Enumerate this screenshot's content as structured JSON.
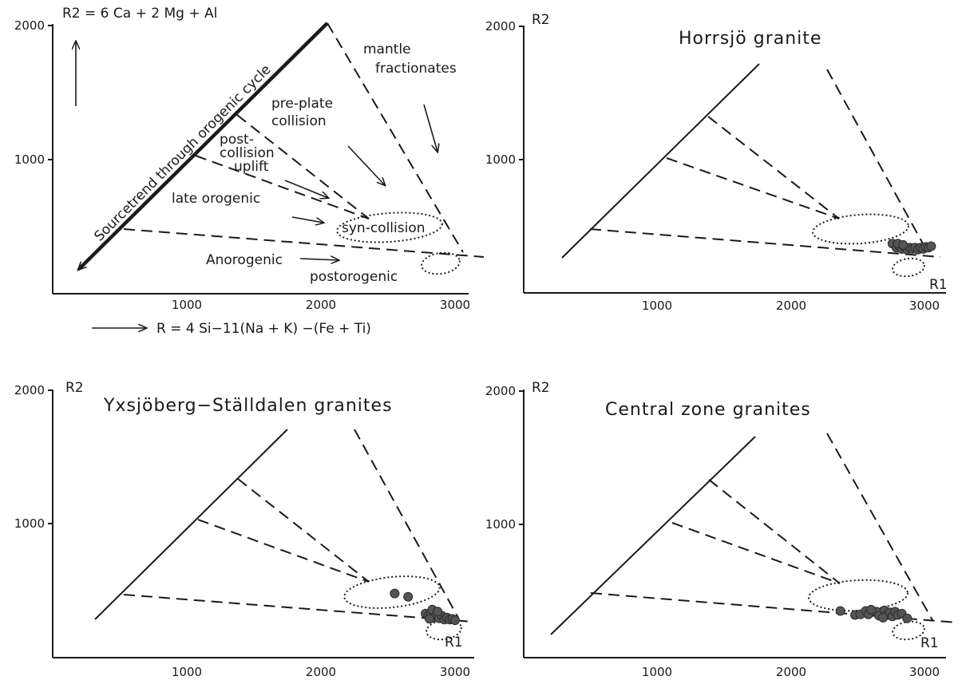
{
  "colors": {
    "ink": "#1a1a1a",
    "points": "#555555",
    "background": "#ffffff"
  },
  "legend_panel": {
    "r2_formula": "R2 = 6 Ca + 2 Mg + Al",
    "r1_formula": "R = 4 Si−11(Na + K) −(Fe + Ti)",
    "sourcetrend_label": "Sourcetrend through orogenic cycle",
    "fields": {
      "mantle_line1": "mantle",
      "mantle_line2": "fractionates",
      "preplate_line1": "pre-plate",
      "preplate_line2": "collision",
      "post_line1": "post-",
      "post_line2": "collision",
      "post_line3": "uplift",
      "late_orogenic": "late orogenic",
      "syn_collision": "syn-collision",
      "anorogenic": "Anorogenic",
      "postorogenic": "postorogenic"
    }
  },
  "axes": {
    "y_label": "R2",
    "x_label": "R1",
    "y_ticks": [
      "1000",
      "2000"
    ],
    "x_ticks": [
      "1000",
      "2000",
      "3000"
    ]
  },
  "panels": [
    {
      "title": ""
    },
    {
      "title": "Horrsjö granite"
    },
    {
      "title": "Yxsjöberg−Ställdalen granites"
    },
    {
      "title": "Central zone granites"
    }
  ],
  "chart_data": [
    {
      "type": "scatter",
      "title": "",
      "xlabel": "R = 4 Si−11(Na + K) −(Fe + Ti)",
      "ylabel": "R2 = 6 Ca + 2 Mg + Al",
      "xlim": [
        0,
        3000
      ],
      "ylim": [
        0,
        2000
      ],
      "points": []
    },
    {
      "type": "scatter",
      "title": "Horrsjö granite",
      "xlabel": "R1",
      "ylabel": "R2",
      "xlim": [
        0,
        3000
      ],
      "ylim": [
        0,
        2000
      ],
      "points": [
        [
          2760,
          370
        ],
        [
          2790,
          340
        ],
        [
          2810,
          355
        ],
        [
          2830,
          330
        ],
        [
          2850,
          345
        ],
        [
          2870,
          325
        ],
        [
          2890,
          340
        ],
        [
          2910,
          330
        ],
        [
          2930,
          340
        ],
        [
          2950,
          325
        ],
        [
          2970,
          340
        ],
        [
          2990,
          330
        ],
        [
          3010,
          345
        ],
        [
          3030,
          340
        ],
        [
          3050,
          350
        ],
        [
          2800,
          370
        ],
        [
          2840,
          360
        ]
      ]
    },
    {
      "type": "scatter",
      "title": "Yxsjöberg−Ställdalen granites",
      "xlabel": "R1",
      "ylabel": "R2",
      "xlim": [
        0,
        3000
      ],
      "ylim": [
        0,
        2000
      ],
      "points": [
        [
          2550,
          480
        ],
        [
          2650,
          455
        ],
        [
          2780,
          330
        ],
        [
          2800,
          310
        ],
        [
          2820,
          335
        ],
        [
          2840,
          300
        ],
        [
          2860,
          320
        ],
        [
          2880,
          295
        ],
        [
          2900,
          315
        ],
        [
          2920,
          285
        ],
        [
          2940,
          300
        ],
        [
          2960,
          285
        ],
        [
          2980,
          290
        ],
        [
          3000,
          280
        ],
        [
          2830,
          360
        ],
        [
          2870,
          345
        ],
        [
          2810,
          290
        ]
      ]
    },
    {
      "type": "scatter",
      "title": "Central zone granites",
      "xlabel": "R1",
      "ylabel": "R2",
      "xlim": [
        0,
        3000
      ],
      "ylim": [
        0,
        2000
      ],
      "points": [
        [
          2370,
          350
        ],
        [
          2480,
          320
        ],
        [
          2520,
          325
        ],
        [
          2560,
          350
        ],
        [
          2580,
          325
        ],
        [
          2640,
          345
        ],
        [
          2660,
          315
        ],
        [
          2700,
          355
        ],
        [
          2720,
          320
        ],
        [
          2740,
          340
        ],
        [
          2760,
          310
        ],
        [
          2780,
          345
        ],
        [
          2800,
          320
        ],
        [
          2830,
          330
        ],
        [
          2870,
          295
        ],
        [
          2600,
          360
        ],
        [
          2690,
          300
        ]
      ]
    }
  ]
}
